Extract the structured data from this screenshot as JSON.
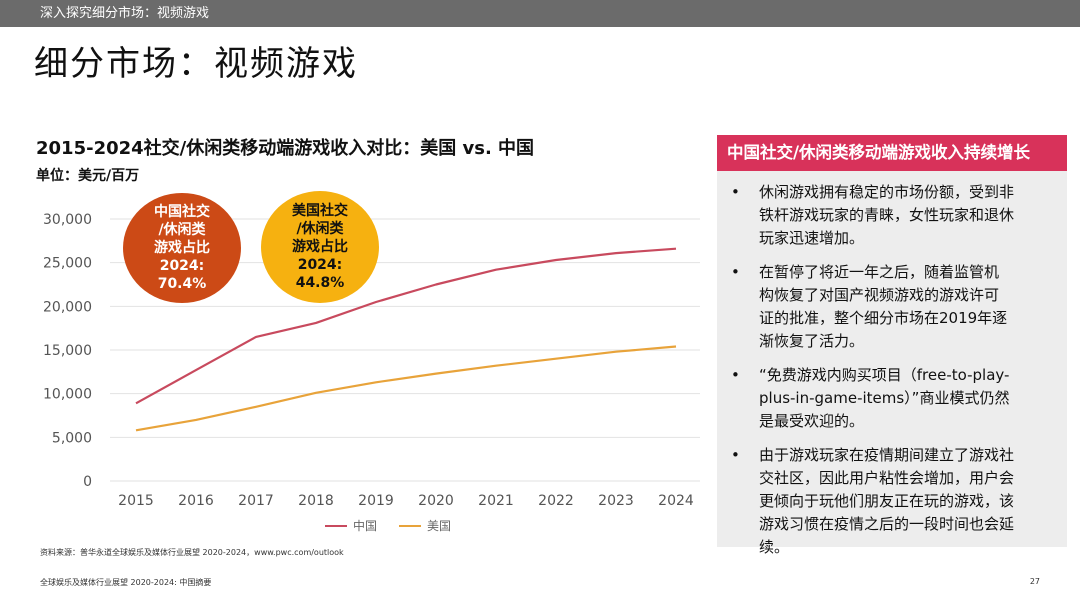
{
  "header": {
    "breadcrumb": "深入探究细分市场：视频游戏"
  },
  "page": {
    "title": "细分市场：视频游戏",
    "footer": "全球娱乐及媒体行业展望 2020-2024: 中国摘要",
    "page_number": "27"
  },
  "source": "资料来源：普华永道全球娱乐及媒体行业展望 2020-2024，www.pwc.com/outlook",
  "colors": {
    "china": "#c84a5e",
    "usa": "#e8a33a",
    "accent": "#d8325a",
    "bubble_china": "#cc4a16",
    "bubble_usa": "#f6b110"
  },
  "chart_data": {
    "type": "line",
    "title": "2015-2024社交/休闲类移动端游戏收入对比：美国 vs. 中国",
    "unit_label": "单位：美元/百万",
    "x": [
      "2015",
      "2016",
      "2017",
      "2018",
      "2019",
      "2020",
      "2021",
      "2022",
      "2023",
      "2024"
    ],
    "y_ticks": [
      "0",
      "5,000",
      "10,000",
      "15,000",
      "20,000",
      "25,000",
      "30,000"
    ],
    "ylim": [
      0,
      30000
    ],
    "grid": true,
    "legend_position": "bottom",
    "series": [
      {
        "name": "中国",
        "color": "#c84a5e",
        "values": [
          8900,
          12700,
          16500,
          18100,
          20500,
          22500,
          24200,
          25300,
          26100,
          26600
        ]
      },
      {
        "name": "美国",
        "color": "#e8a33a",
        "values": [
          5800,
          7000,
          8500,
          10100,
          11300,
          12300,
          13200,
          14000,
          14800,
          15400
        ]
      }
    ]
  },
  "bubbles": {
    "china": [
      "中国社交",
      "/休闲类",
      "游戏占比",
      "2024:",
      "70.4%"
    ],
    "usa": [
      "美国社交",
      "/休闲类",
      "游戏占比",
      "2024:",
      "44.8%"
    ]
  },
  "panel": {
    "title": "中国社交/休闲类移动端游戏收入持续增长",
    "bullet_symbol": "•",
    "bullets": [
      [
        "休闲游戏拥有稳定的市场份额，受到非",
        "铁杆游戏玩家的青睐，女性玩家和退休",
        "玩家迅速增加。"
      ],
      [
        "在暂停了将近一年之后，随着监管机",
        "构恢复了对国产视频游戏的游戏许可",
        "证的批准，整个细分市场在2019年逐",
        "渐恢复了活力。"
      ],
      [
        "“免费游戏内购买项目（free-to-play-",
        "plus-in-game-items）”商业模式仍然",
        "是最受欢迎的。"
      ],
      [
        "由于游戏玩家在疫情期间建立了游戏社",
        "交社区，因此用户粘性会增加，用户会",
        "更倾向于玩他们朋友正在玩的游戏，该",
        "游戏习惯在疫情之后的一段时间也会延",
        "续。"
      ]
    ]
  }
}
